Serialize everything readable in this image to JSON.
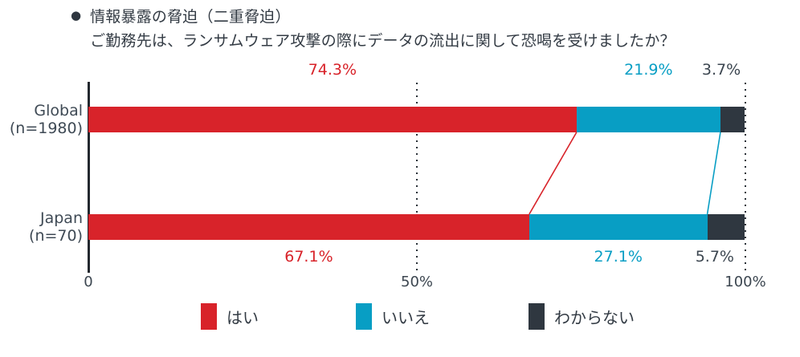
{
  "header": {
    "bullet": "●",
    "title": "情報暴露の脅迫（二重脅迫）",
    "question": "ご勤務先は、ランサムウェア攻撃の際にデータの流出に関して恐喝を受けましたか？"
  },
  "chart_data": {
    "type": "bar",
    "orientation": "horizontal",
    "stacked": true,
    "title": "情報暴露の脅迫（二重脅迫）",
    "subtitle": "ご勤務先は、ランサムウェア攻撃の際にデータの流出に関して恐喝を受けましたか？",
    "categories": [
      "Global (n=1980)",
      "Japan (n=70)"
    ],
    "rows": [
      {
        "label_line1": "Global",
        "label_line2": "(n=1980)",
        "values": [
          74.3,
          21.9,
          3.7
        ],
        "value_labels": [
          "74.3%",
          "21.9%",
          "3.7%"
        ]
      },
      {
        "label_line1": "Japan",
        "label_line2": "(n=70)",
        "values": [
          67.1,
          27.1,
          5.7
        ],
        "value_labels": [
          "67.1%",
          "27.1%",
          "5.7%"
        ]
      }
    ],
    "series": [
      {
        "name": "はい",
        "color": "#d8232a",
        "values": [
          74.3,
          67.1
        ]
      },
      {
        "name": "いいえ",
        "color": "#089ec4",
        "values": [
          21.9,
          27.1
        ]
      },
      {
        "name": "わからない",
        "color": "#2f3740",
        "values": [
          3.7,
          5.7
        ]
      }
    ],
    "xlim": [
      0,
      100
    ],
    "x_ticks": [
      "0",
      "50%",
      "100%"
    ],
    "x_tick_values": [
      0,
      50,
      100
    ],
    "gridlines": {
      "style": "dotted",
      "at": [
        50,
        100
      ]
    },
    "legend": [
      {
        "label": "はい",
        "color": "#d8232a"
      },
      {
        "label": "いいえ",
        "color": "#089ec4"
      },
      {
        "label": "わからない",
        "color": "#2f3740"
      }
    ],
    "legend_position": "bottom",
    "axis_color": "#23282e"
  }
}
